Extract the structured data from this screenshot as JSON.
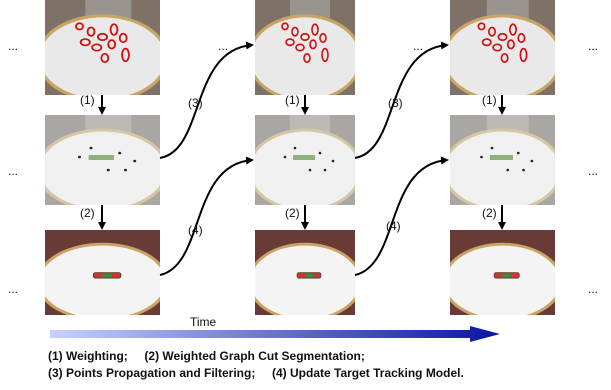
{
  "figure": {
    "steps": {
      "weighting": "(1)",
      "segmentation": "(2)",
      "propagation": "(3)",
      "update": "(4)"
    },
    "ellipsis": "...",
    "time_label": "Time",
    "caption": [
      "(1) Weighting;     (2) Weighted Graph Cut Segmentation;",
      "(3) Points Propagation and Filtering;     (4) Update Target Tracking Model."
    ]
  }
}
